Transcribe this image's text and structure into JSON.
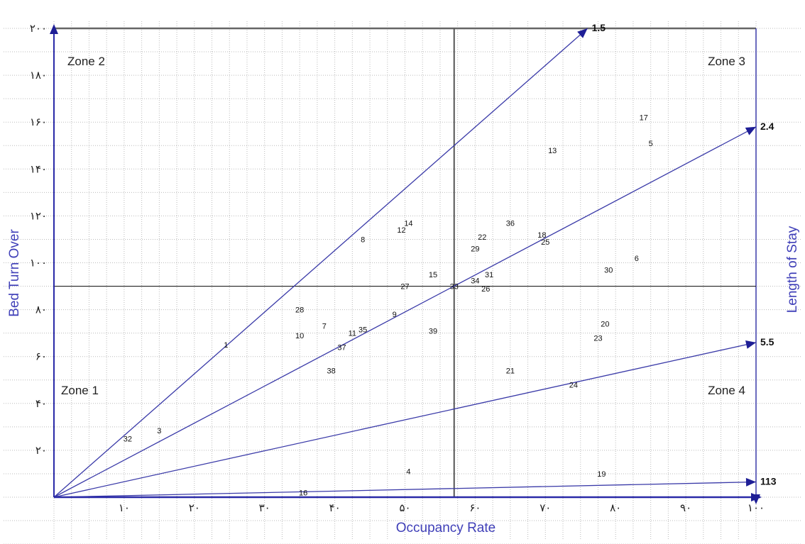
{
  "chart_data": {
    "type": "scatter",
    "title": "",
    "xlabel": "Occupancy Rate",
    "ylabel": "Bed Turn Over",
    "right_label": "Length of Stay",
    "xlim": [
      0,
      100
    ],
    "ylim": [
      0,
      200
    ],
    "x_ticks": [
      {
        "value": 10,
        "label": "۱۰"
      },
      {
        "value": 20,
        "label": "۲۰"
      },
      {
        "value": 30,
        "label": "۳۰"
      },
      {
        "value": 40,
        "label": "۴۰"
      },
      {
        "value": 50,
        "label": "۵۰"
      },
      {
        "value": 60,
        "label": "۶۰"
      },
      {
        "value": 70,
        "label": "۷۰"
      },
      {
        "value": 80,
        "label": "۸۰"
      },
      {
        "value": 90,
        "label": "۹۰"
      },
      {
        "value": 100,
        "label": "۱۰۰"
      }
    ],
    "y_ticks": [
      {
        "value": 20,
        "label": "۲۰"
      },
      {
        "value": 40,
        "label": "۴۰"
      },
      {
        "value": 60,
        "label": "۶۰"
      },
      {
        "value": 80,
        "label": "۸۰"
      },
      {
        "value": 100,
        "label": "۱۰۰"
      },
      {
        "value": 120,
        "label": "۱۲۰"
      },
      {
        "value": 140,
        "label": "۱۴۰"
      },
      {
        "value": 160,
        "label": "۱۶۰"
      },
      {
        "value": 180,
        "label": "۱۸۰"
      },
      {
        "value": 200,
        "label": "۲۰۰"
      }
    ],
    "grid": true,
    "mean_lines": {
      "x": 57,
      "y": 90
    },
    "zones": [
      {
        "label": "Zone 1",
        "position": "bottom-left"
      },
      {
        "label": "Zone 2",
        "position": "top-left"
      },
      {
        "label": "Zone 3",
        "position": "top-right"
      },
      {
        "label": "Zone 4",
        "position": "bottom-right"
      }
    ],
    "los_lines": [
      {
        "label": "1.5",
        "end": [
          76,
          200
        ]
      },
      {
        "label": "2.4",
        "end": [
          100,
          158
        ]
      },
      {
        "label": "5.5",
        "end": [
          100,
          66
        ]
      },
      {
        "label": "113",
        "end": [
          100,
          6.5
        ]
      }
    ],
    "points": [
      {
        "label": "1",
        "x": 24.5,
        "y": 65
      },
      {
        "label": "3",
        "x": 15,
        "y": 28.5
      },
      {
        "label": "4",
        "x": 50.5,
        "y": 11
      },
      {
        "label": "5",
        "x": 85,
        "y": 151
      },
      {
        "label": "6",
        "x": 83,
        "y": 102
      },
      {
        "label": "7",
        "x": 38.5,
        "y": 73
      },
      {
        "label": "8",
        "x": 44,
        "y": 110
      },
      {
        "label": "9",
        "x": 48.5,
        "y": 78
      },
      {
        "label": "10",
        "x": 35,
        "y": 69
      },
      {
        "label": "11",
        "x": 42.5,
        "y": 70
      },
      {
        "label": "12",
        "x": 49.5,
        "y": 114
      },
      {
        "label": "13",
        "x": 71,
        "y": 148
      },
      {
        "label": "14",
        "x": 50.5,
        "y": 117
      },
      {
        "label": "15",
        "x": 54,
        "y": 95
      },
      {
        "label": "16",
        "x": 35.5,
        "y": 2
      },
      {
        "label": "17",
        "x": 84,
        "y": 162
      },
      {
        "label": "18",
        "x": 69.5,
        "y": 112
      },
      {
        "label": "19",
        "x": 78,
        "y": 10
      },
      {
        "label": "20",
        "x": 78.5,
        "y": 74
      },
      {
        "label": "21",
        "x": 65,
        "y": 54
      },
      {
        "label": "22",
        "x": 61,
        "y": 111
      },
      {
        "label": "23",
        "x": 77.5,
        "y": 68
      },
      {
        "label": "24",
        "x": 74,
        "y": 48
      },
      {
        "label": "25",
        "x": 70,
        "y": 109
      },
      {
        "label": "26",
        "x": 61.5,
        "y": 89
      },
      {
        "label": "27",
        "x": 50,
        "y": 90
      },
      {
        "label": "28",
        "x": 35,
        "y": 80
      },
      {
        "label": "29",
        "x": 60,
        "y": 106
      },
      {
        "label": "30",
        "x": 79,
        "y": 97
      },
      {
        "label": "31",
        "x": 62,
        "y": 95
      },
      {
        "label": "32",
        "x": 10.5,
        "y": 25
      },
      {
        "label": "33",
        "x": 57,
        "y": 90
      },
      {
        "label": "34",
        "x": 60,
        "y": 92.5
      },
      {
        "label": "35",
        "x": 44,
        "y": 71.5
      },
      {
        "label": "36",
        "x": 65,
        "y": 117
      },
      {
        "label": "37",
        "x": 41,
        "y": 64
      },
      {
        "label": "38",
        "x": 39.5,
        "y": 54
      },
      {
        "label": "39",
        "x": 54,
        "y": 71
      }
    ],
    "colors": {
      "axes": "#2a2aa8",
      "los_lines": "#3a3aa8",
      "mean_lines": "#333333",
      "grid": "#bbbbbb"
    }
  }
}
